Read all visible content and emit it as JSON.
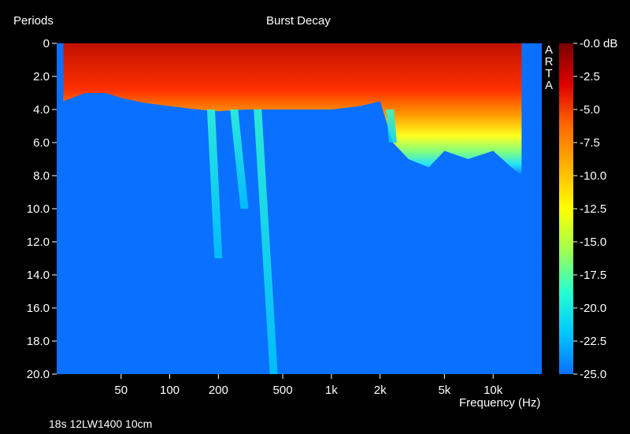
{
  "chart_data": {
    "type": "heatmap",
    "title": "Burst Decay",
    "ylabel": "Periods",
    "xlabel": "Frequency (Hz)",
    "watermark": "ARTA",
    "caption": "18s 12LW1400 10cm",
    "x_scale": "log",
    "xlim": [
      20,
      20000
    ],
    "ylim": [
      0,
      20
    ],
    "y_inverted": true,
    "x_ticks": [
      {
        "value": 50,
        "label": "50"
      },
      {
        "value": 100,
        "label": "100"
      },
      {
        "value": 200,
        "label": "200"
      },
      {
        "value": 500,
        "label": "500"
      },
      {
        "value": 1000,
        "label": "1k"
      },
      {
        "value": 2000,
        "label": "2k"
      },
      {
        "value": 5000,
        "label": "5k"
      },
      {
        "value": 10000,
        "label": "10k"
      }
    ],
    "y_ticks": [
      "0",
      "2.0",
      "4.0",
      "6.0",
      "8.0",
      "10.0",
      "12.0",
      "14.0",
      "16.0",
      "18.0",
      "20.0"
    ],
    "colorbar": {
      "min": -25,
      "max": 0,
      "unit": "dB",
      "labels": [
        "-0.0 dB",
        "-2.5",
        "-5.0",
        "-7.5",
        "-10.0",
        "-12.5",
        "-15.0",
        "-17.5",
        "-20.0",
        "-22.5",
        "-25.0"
      ],
      "colors": [
        "#7a0000",
        "#e00000",
        "#ff6a00",
        "#ffb400",
        "#ffff00",
        "#a0ff50",
        "#28ffd0",
        "#00c8ff",
        "#0a70ff"
      ]
    },
    "background_color": "#0a70ff",
    "decay_profile": [
      {
        "freq": 22,
        "periods": 3.5
      },
      {
        "freq": 30,
        "periods": 3.0
      },
      {
        "freq": 40,
        "periods": 3.0
      },
      {
        "freq": 50,
        "periods": 3.3
      },
      {
        "freq": 70,
        "periods": 3.6
      },
      {
        "freq": 100,
        "periods": 3.8
      },
      {
        "freq": 150,
        "periods": 4.0
      },
      {
        "freq": 200,
        "periods": 4.1
      },
      {
        "freq": 300,
        "periods": 4.0
      },
      {
        "freq": 500,
        "periods": 4.0
      },
      {
        "freq": 800,
        "periods": 4.0
      },
      {
        "freq": 1000,
        "periods": 4.0
      },
      {
        "freq": 1500,
        "periods": 3.8
      },
      {
        "freq": 2000,
        "periods": 3.5
      },
      {
        "freq": 2400,
        "periods": 6.0
      },
      {
        "freq": 3000,
        "periods": 7.0
      },
      {
        "freq": 4000,
        "periods": 7.5
      },
      {
        "freq": 5000,
        "periods": 6.5
      },
      {
        "freq": 7000,
        "periods": 7.0
      },
      {
        "freq": 10000,
        "periods": 6.5
      },
      {
        "freq": 13000,
        "periods": 7.5
      },
      {
        "freq": 15000,
        "periods": 8.0
      }
    ],
    "resonance_trails": [
      {
        "freq_start": 180,
        "freq_end": 200,
        "periods_start": 4,
        "periods_end": 13
      },
      {
        "freq_start": 250,
        "freq_end": 290,
        "periods_start": 4,
        "periods_end": 10
      },
      {
        "freq_start": 350,
        "freq_end": 440,
        "periods_start": 4,
        "periods_end": 20
      },
      {
        "freq_start": 2300,
        "freq_end": 2400,
        "periods_start": 4,
        "periods_end": 6
      }
    ]
  }
}
